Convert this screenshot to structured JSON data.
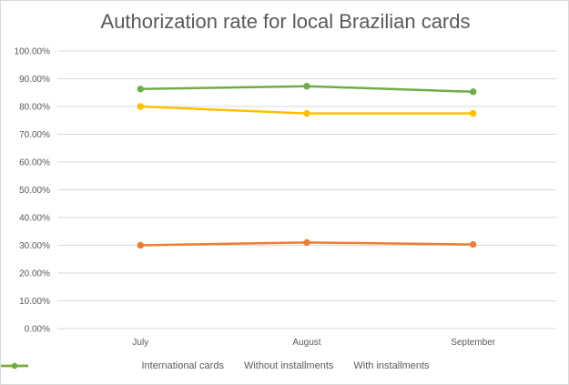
{
  "chart_data": {
    "type": "line",
    "title": "Authorization rate for local Brazilian cards",
    "xlabel": "",
    "ylabel": "",
    "categories": [
      "July",
      "August",
      "September"
    ],
    "ylim": [
      0,
      1
    ],
    "yticks": [
      {
        "value": 0.0,
        "label": "0.00%"
      },
      {
        "value": 0.1,
        "label": "10.00%"
      },
      {
        "value": 0.2,
        "label": "20.00%"
      },
      {
        "value": 0.3,
        "label": "30.00%"
      },
      {
        "value": 0.4,
        "label": "40.00%"
      },
      {
        "value": 0.5,
        "label": "50.00%"
      },
      {
        "value": 0.6,
        "label": "60.00%"
      },
      {
        "value": 0.7,
        "label": "70.00%"
      },
      {
        "value": 0.8,
        "label": "80.00%"
      },
      {
        "value": 0.9,
        "label": "90.00%"
      },
      {
        "value": 1.0,
        "label": "100.00%"
      }
    ],
    "grid": true,
    "legend_position": "bottom",
    "series": [
      {
        "name": "International cards",
        "color": "#ed7d31",
        "values": [
          0.3,
          0.31,
          0.303
        ]
      },
      {
        "name": "Without installments",
        "color": "#ffc000",
        "values": [
          0.8,
          0.775,
          0.775
        ]
      },
      {
        "name": "With installments",
        "color": "#70ad47",
        "values": [
          0.863,
          0.873,
          0.853
        ]
      }
    ]
  }
}
